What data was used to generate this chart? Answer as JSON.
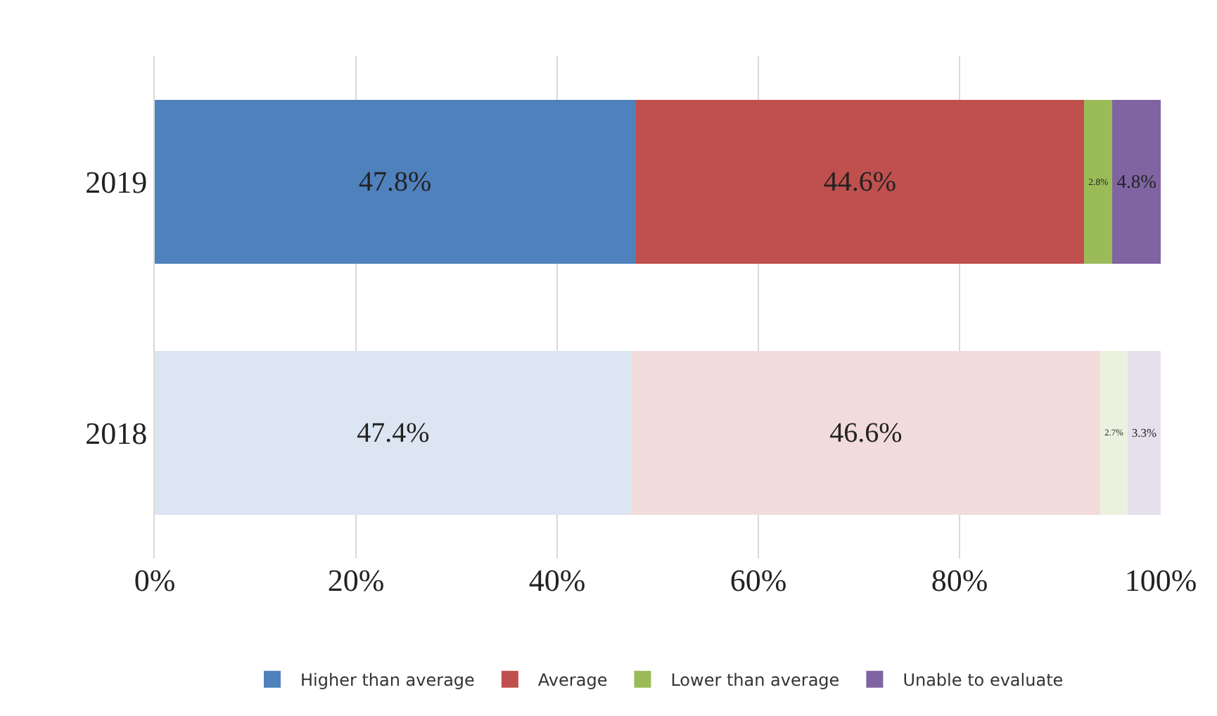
{
  "chart_data": {
    "type": "bar",
    "orientation": "horizontal",
    "stacked": true,
    "categories": [
      "2019",
      "2018"
    ],
    "series": [
      {
        "name": "Higher than average",
        "colors": [
          "#4f81bd",
          "#dce6f2"
        ],
        "values": [
          47.8,
          47.4
        ],
        "value_labels": [
          "47.8%",
          "47.4%"
        ]
      },
      {
        "name": "Average",
        "colors": [
          "#c0504d",
          "#f2dcdb"
        ],
        "values": [
          44.6,
          46.6
        ],
        "value_labels": [
          "44.6%",
          "46.6%"
        ]
      },
      {
        "name": "Lower than average",
        "colors": [
          "#9bbb59",
          "#ebf1de"
        ],
        "values": [
          2.8,
          2.7
        ],
        "value_labels": [
          "2.8%",
          "2.7%"
        ]
      },
      {
        "name": "Unable to evaluate",
        "colors": [
          "#8064a2",
          "#e5e0ec"
        ],
        "values": [
          4.8,
          3.3
        ],
        "value_labels": [
          "4.8%",
          "3.3%"
        ]
      }
    ],
    "xlim": [
      0,
      100
    ],
    "xticks": [
      {
        "value": 0,
        "label": "0%"
      },
      {
        "value": 20,
        "label": "20%"
      },
      {
        "value": 40,
        "label": "40%"
      },
      {
        "value": 60,
        "label": "60%"
      },
      {
        "value": 80,
        "label": "80%"
      },
      {
        "value": 100,
        "label": "100%"
      }
    ],
    "grid": "x",
    "legend": "bottom"
  }
}
